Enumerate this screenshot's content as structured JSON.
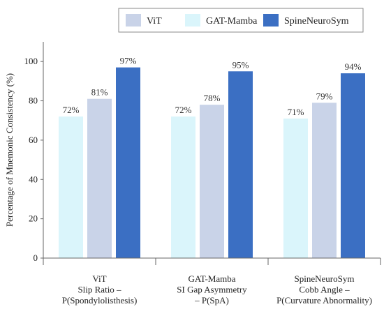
{
  "chart_data": {
    "type": "bar",
    "categories": [
      [
        "ViT",
        "Slip Ratio –",
        "P(Spondylolisthesis)"
      ],
      [
        "GAT-Mamba",
        "SI Gap Asymmetry",
        "– P(SpA)"
      ],
      [
        "SpineNeuroSym",
        "Cobb Angle –",
        "P(Curvature Abnormality)"
      ]
    ],
    "bar_order": [
      "GAT-Mamba",
      "ViT",
      "SpineNeuroSym"
    ],
    "series": [
      {
        "name": "ViT",
        "color": "#c9d3e8",
        "values": [
          81,
          78,
          79
        ],
        "labels": [
          "81%",
          "78%",
          "79%"
        ]
      },
      {
        "name": "GAT-Mamba",
        "color": "#daf5fb",
        "values": [
          72,
          72,
          71
        ],
        "labels": [
          "72%",
          "72%",
          "71%"
        ]
      },
      {
        "name": "SpineNeuroSym",
        "color": "#3b6fc3",
        "values": [
          97,
          95,
          94
        ],
        "labels": [
          "97%",
          "95%",
          "94%"
        ]
      }
    ],
    "title": "",
    "xlabel": "",
    "ylabel": "Percentage of Mnemonic Consistency (%)",
    "ylim": [
      0,
      110
    ],
    "yticks": [
      0,
      20,
      40,
      60,
      80,
      100
    ],
    "grid": false,
    "legend_position": "top"
  }
}
